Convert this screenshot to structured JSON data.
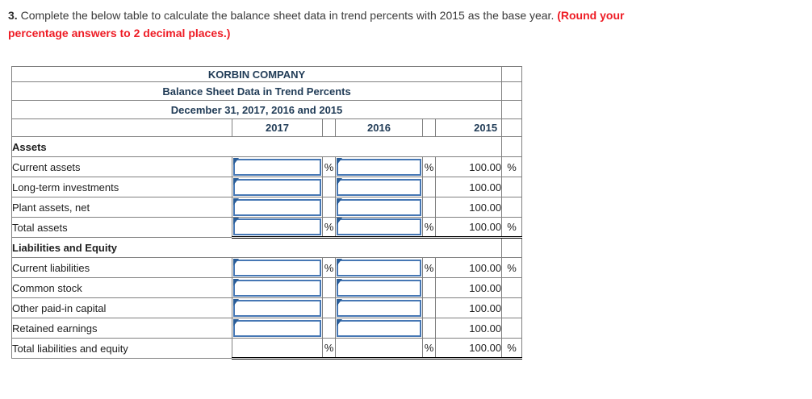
{
  "instruction": {
    "number": "3.",
    "body": "Complete the below table to calculate the balance sheet data in trend percents with 2015 as the base year.",
    "emphasis_line1": "(Round your",
    "emphasis_line2": "percentage answers to 2 decimal places.)"
  },
  "table": {
    "titles": [
      "KORBIN COMPANY",
      "Balance Sheet Data in Trend Percents",
      "December 31, 2017, 2016 and 2015"
    ],
    "columns": {
      "year1": "2017",
      "year2": "2016",
      "year3": "2015"
    },
    "percent_symbol": "%",
    "input_value": "",
    "rows": [
      {
        "label": "Assets",
        "type": "section"
      },
      {
        "label": "Current assets",
        "type": "input",
        "show_percent": true,
        "base_value": "100.00"
      },
      {
        "label": "Long-term investments",
        "type": "input",
        "show_percent": false,
        "base_value": "100.00"
      },
      {
        "label": "Plant assets, net",
        "type": "input",
        "show_percent": false,
        "base_value": "100.00"
      },
      {
        "label": "Total assets",
        "type": "input-total",
        "show_percent": true,
        "base_value": "100.00"
      },
      {
        "label": "Liabilities and Equity",
        "type": "section"
      },
      {
        "label": "Current liabilities",
        "type": "input",
        "show_percent": true,
        "base_value": "100.00"
      },
      {
        "label": "Common stock",
        "type": "input",
        "show_percent": false,
        "base_value": "100.00"
      },
      {
        "label": "Other paid-in capital",
        "type": "input",
        "show_percent": false,
        "base_value": "100.00"
      },
      {
        "label": "Retained earnings",
        "type": "input",
        "show_percent": false,
        "base_value": "100.00"
      },
      {
        "label": "Total liabilities and equity",
        "type": "computed-total",
        "show_percent": true,
        "base_value": "100.00"
      }
    ]
  },
  "colors": {
    "header_blue": "#76a9df",
    "header_text": "#213c57",
    "grid_gray": "#808080",
    "input_border_blue": "#4677b4",
    "input_marker_blue": "#2a5d98",
    "emphasis_red": "#ee1c25"
  }
}
